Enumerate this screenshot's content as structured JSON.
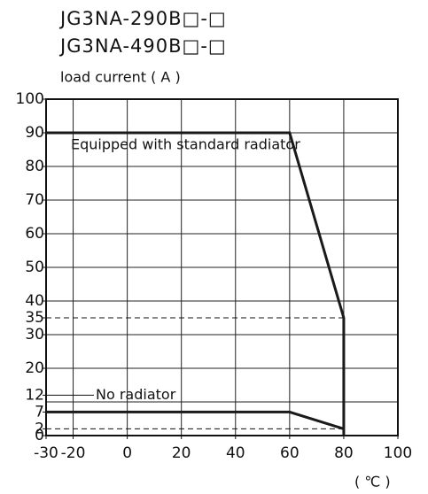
{
  "chart_data": {
    "type": "line",
    "titles": [
      "JG3NA-290B□-□",
      "JG3NA-490B□-□"
    ],
    "ylabel": "load current ( A )",
    "xlabel": "( ℃ )",
    "xlim": [
      -30,
      100
    ],
    "xticks": [
      -30,
      -20,
      0,
      20,
      40,
      60,
      80,
      100
    ],
    "ylim": [
      0,
      100
    ],
    "yticks": [
      0,
      2,
      7,
      12,
      20,
      30,
      35,
      40,
      50,
      60,
      70,
      80,
      90,
      100
    ],
    "xgrid": [
      -20,
      0,
      20,
      40,
      60,
      80
    ],
    "ygrid": [
      10,
      20,
      30,
      40,
      50,
      60,
      70,
      80,
      90
    ],
    "reference_lines": [
      35,
      2
    ],
    "series": [
      {
        "name": "Equipped with standard radiator",
        "color": "#1a1a1a",
        "x": [
          -30,
          60,
          80,
          80
        ],
        "values": [
          90,
          90,
          35,
          0
        ]
      },
      {
        "name": "No radiator",
        "color": "#1a1a1a",
        "x": [
          -30,
          60,
          80
        ],
        "values": [
          7,
          7,
          2
        ]
      }
    ]
  }
}
